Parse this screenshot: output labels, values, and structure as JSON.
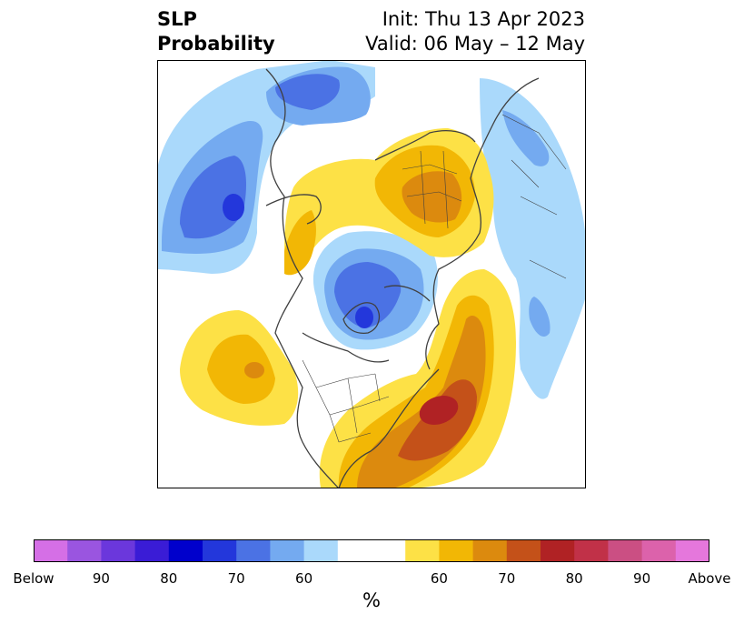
{
  "title": {
    "left_line1": "SLP",
    "left_line2": "Probability",
    "init": "Init: Thu 13 Apr 2023",
    "valid": "Valid: 06 May – 12 May"
  },
  "colorbar": {
    "colors": [
      "#d56fe6",
      "#9a55e0",
      "#6b37dc",
      "#3a1cd6",
      "#0000cc",
      "#2337db",
      "#4b72e4",
      "#74aaf0",
      "#aad9fb",
      "#ffffff",
      "#ffffff",
      "#fde146",
      "#f2b705",
      "#dc8a0e",
      "#c45119",
      "#b02224",
      "#c13148",
      "#cb4f83",
      "#dc62ab",
      "#e577dc"
    ],
    "labels": [
      "Below",
      "90",
      "80",
      "70",
      "60",
      "60",
      "70",
      "80",
      "90",
      "Above"
    ],
    "units": "%"
  },
  "map": {
    "region": "Northern Hemisphere polar stereographic",
    "colors": {
      "blue1": "#aad9fb",
      "blue2": "#74aaf0",
      "blue3": "#4b72e4",
      "blue4": "#2337db",
      "yellow1": "#fde146",
      "yellow2": "#f2b705",
      "orange": "#dc8a0e",
      "brown": "#c45119",
      "red": "#b02224"
    }
  }
}
